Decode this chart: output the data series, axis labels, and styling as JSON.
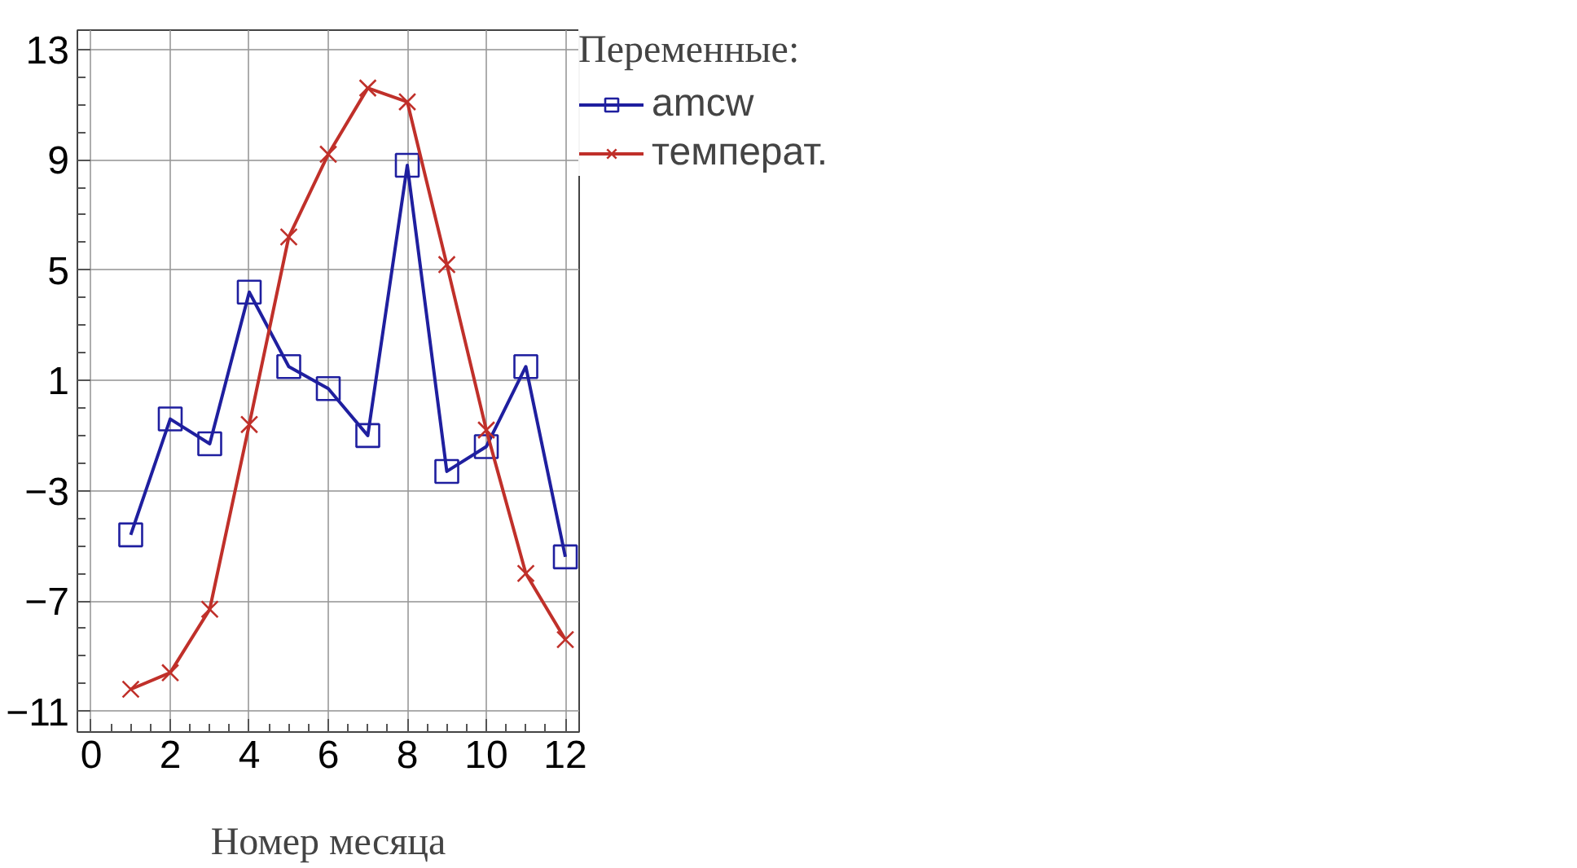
{
  "chart_data": {
    "type": "line",
    "xlabel": "Номер месяца",
    "legend_title": "Переменные:",
    "x": [
      1,
      2,
      3,
      4,
      5,
      6,
      7,
      8,
      9,
      10,
      11,
      12
    ],
    "series": [
      {
        "name": "amcw",
        "color": "#1f1f9f",
        "marker": "square",
        "values": [
          -4.6,
          -0.4,
          -1.3,
          4.2,
          1.5,
          0.7,
          -1.0,
          8.8,
          -2.3,
          -1.4,
          1.5,
          -5.4
        ]
      },
      {
        "name": "температ.",
        "color": "#c0302a",
        "marker": "cross",
        "values": [
          -10.2,
          -9.6,
          -7.3,
          -0.6,
          6.2,
          9.2,
          11.6,
          11.1,
          5.2,
          -0.8,
          -6.0,
          -8.4
        ]
      }
    ],
    "xlim": [
      -0.35,
      12.35
    ],
    "xticks": [
      0,
      2,
      4,
      6,
      8,
      10,
      12
    ],
    "ylim": [
      -11.75,
      13.7
    ],
    "yticks": [
      -11,
      -7,
      -3,
      1,
      5,
      9,
      13
    ],
    "grid": true,
    "legend": "top right",
    "line_style": "solid"
  }
}
